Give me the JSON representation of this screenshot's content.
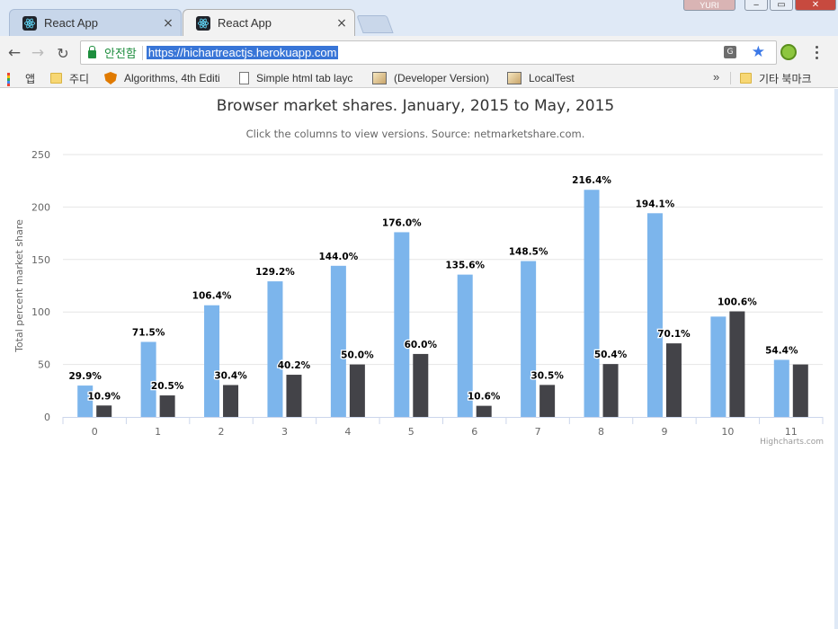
{
  "browser": {
    "tabs": [
      {
        "title": "React App",
        "close": "×"
      },
      {
        "title": "React App",
        "close": "×"
      }
    ],
    "user_badge": "YURI",
    "window_controls": {
      "minimize": "‒",
      "maximize": "▭",
      "close": "✕"
    },
    "nav": {
      "back": "←",
      "forward": "→",
      "reload": "↻"
    },
    "secure_label": "안전함",
    "url": "https://hichartreactjs.herokuapp.com",
    "translate_glyph": "G",
    "star": "★",
    "bookmarks": [
      {
        "label": "앱",
        "icon": "apps-icon"
      },
      {
        "label": "주디",
        "icon": "folder-icon"
      },
      {
        "label": "Algorithms, 4th Editi",
        "icon": "shield-icon"
      },
      {
        "label": "Simple html tab layc",
        "icon": "page-icon"
      },
      {
        "label": "(Developer Version)",
        "icon": "img-icon"
      },
      {
        "label": "LocalTest",
        "icon": "img-icon"
      }
    ],
    "bookmarks_overflow": "»",
    "other_bookmarks": "기타 북마크"
  },
  "chart_data": {
    "type": "bar",
    "title": "Browser market shares. January, 2015 to May, 2015",
    "subtitle": "Click the columns to view versions. Source: netmarketshare.com.",
    "ylabel": "Total percent market share",
    "xlabel": "",
    "ylim": [
      0,
      250
    ],
    "y_ticks": [
      0,
      50,
      100,
      150,
      200,
      250
    ],
    "categories": [
      "0",
      "1",
      "2",
      "3",
      "4",
      "5",
      "6",
      "7",
      "8",
      "9",
      "10",
      "11"
    ],
    "series": [
      {
        "color": "#7cb5ec",
        "values": [
          29.9,
          71.5,
          106.4,
          129.2,
          144.0,
          176.0,
          135.6,
          148.5,
          216.4,
          194.1,
          95.6,
          54.4
        ],
        "labels": [
          "29.9%",
          "71.5%",
          "106.4%",
          "129.2%",
          "144.0%",
          "176.0%",
          "135.6%",
          "148.5%",
          "216.4%",
          "194.1%",
          "",
          "54.4%"
        ]
      },
      {
        "color": "#434348",
        "values": [
          10.9,
          20.5,
          30.4,
          40.2,
          50.0,
          60.0,
          10.6,
          30.5,
          50.4,
          70.1,
          100.6,
          50.0
        ],
        "labels": [
          "10.9%",
          "20.5%",
          "30.4%",
          "40.2%",
          "50.0%",
          "60.0%",
          "10.6%",
          "30.5%",
          "50.4%",
          "70.1%",
          "100.6%",
          ""
        ]
      }
    ],
    "grid": true,
    "legend": "none",
    "credits": "Highcharts.com"
  }
}
